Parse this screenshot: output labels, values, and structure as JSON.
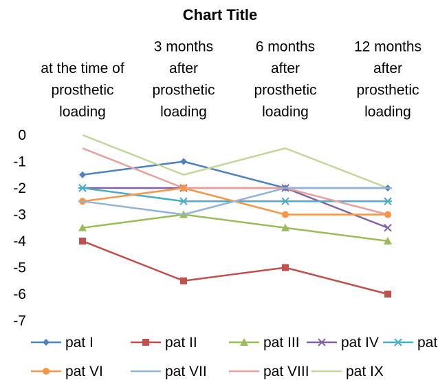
{
  "chart_data": {
    "type": "line",
    "title": "Chart Title",
    "categories": [
      "at the time of prosthetic loading",
      "3 months after prosthetic loading",
      "6 months after prosthetic loading",
      "12 months after prosthetic loading"
    ],
    "category_lines": [
      [
        "at the time of",
        "prosthetic",
        "loading"
      ],
      [
        "3 months",
        "after",
        "prosthetic",
        "loading"
      ],
      [
        "6 months",
        "after",
        "prosthetic",
        "loading"
      ],
      [
        "12 months",
        "after",
        "prosthetic",
        "loading"
      ]
    ],
    "x_axis_position": "top",
    "yticks": [
      "0",
      "-1",
      "-2",
      "-3",
      "-4",
      "-5",
      "-6",
      "-7"
    ],
    "ylim": [
      -7,
      0
    ],
    "grid": false,
    "legend_position": "bottom",
    "series": [
      {
        "name": "pat I",
        "values": [
          -1.5,
          -1,
          -2,
          -2
        ],
        "color": "#4F81BD",
        "marker": "diamond"
      },
      {
        "name": "pat II",
        "values": [
          -4,
          -5.5,
          -5,
          -6
        ],
        "color": "#C0504D",
        "marker": "square"
      },
      {
        "name": "pat III",
        "values": [
          -3.5,
          -3,
          -3.5,
          -4
        ],
        "color": "#9BBB59",
        "marker": "triangle"
      },
      {
        "name": "pat IV",
        "values": [
          -2,
          -2,
          -2,
          -3.5
        ],
        "color": "#8064A2",
        "marker": "x"
      },
      {
        "name": "pat V",
        "values": [
          -2,
          -2.5,
          -2.5,
          -2.5
        ],
        "color": "#4BACC6",
        "marker": "star"
      },
      {
        "name": "pat VI",
        "values": [
          -2.5,
          -2,
          -3,
          -3
        ],
        "color": "#F79646",
        "marker": "circle"
      },
      {
        "name": "pat VII",
        "values": [
          -2.5,
          -3,
          -2,
          -2
        ],
        "color": "#95B3D7",
        "marker": "plus"
      },
      {
        "name": "pat VIII",
        "values": [
          -0.5,
          -2,
          -2,
          -3
        ],
        "color": "#E6A09E",
        "marker": "none"
      },
      {
        "name": "pat IX",
        "values": [
          0,
          -1.5,
          -0.5,
          -2
        ],
        "color": "#C3D69B",
        "marker": "none"
      }
    ]
  }
}
